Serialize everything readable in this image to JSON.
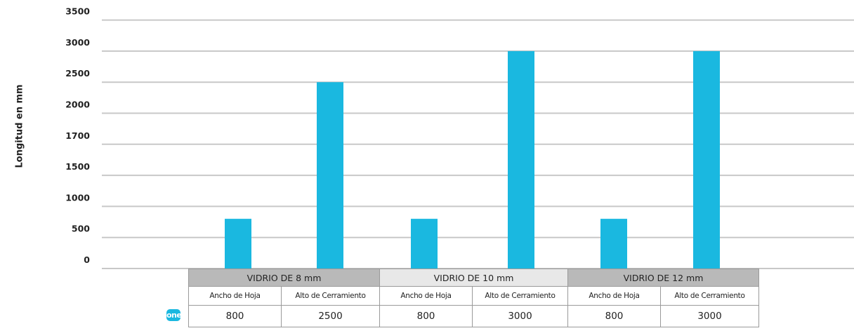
{
  "chart_data": {
    "type": "bar",
    "ylabel": "Longitud en mm",
    "ytick_labels": [
      "0",
      "500",
      "1000",
      "1500",
      "1700",
      "2000",
      "2500",
      "3000",
      "3500"
    ],
    "bar_color": "#1ab8e0",
    "grid": true,
    "groups": [
      {
        "name": "VIDRIO DE 8 mm",
        "bars": [
          {
            "label": "Ancho de Hoja",
            "value": 800
          },
          {
            "label": "Alto de Cerramiento",
            "value": 2500
          }
        ]
      },
      {
        "name": "VIDRIO DE 10 mm",
        "bars": [
          {
            "label": "Ancho de Hoja",
            "value": 800
          },
          {
            "label": "Alto de Cerramiento",
            "value": 3000
          }
        ]
      },
      {
        "name": "VIDRIO DE 12 mm",
        "bars": [
          {
            "label": "Ancho de Hoja",
            "value": 800
          },
          {
            "label": "Alto de Cerramiento",
            "value": 3000
          }
        ]
      }
    ]
  },
  "table": {
    "groups": [
      "VIDRIO DE 8 mm",
      "VIDRIO DE 10 mm",
      "VIDRIO DE 12 mm"
    ],
    "sublabels": [
      "Ancho de Hoja",
      "Alto de Cerramiento",
      "Ancho de Hoja",
      "Alto de Cerramiento",
      "Ancho de Hoja",
      "Alto de Cerramiento"
    ],
    "values": [
      "800",
      "2500",
      "800",
      "3000",
      "800",
      "3000"
    ]
  },
  "logo": {
    "text": "one",
    "color": "#1ab8e0"
  }
}
